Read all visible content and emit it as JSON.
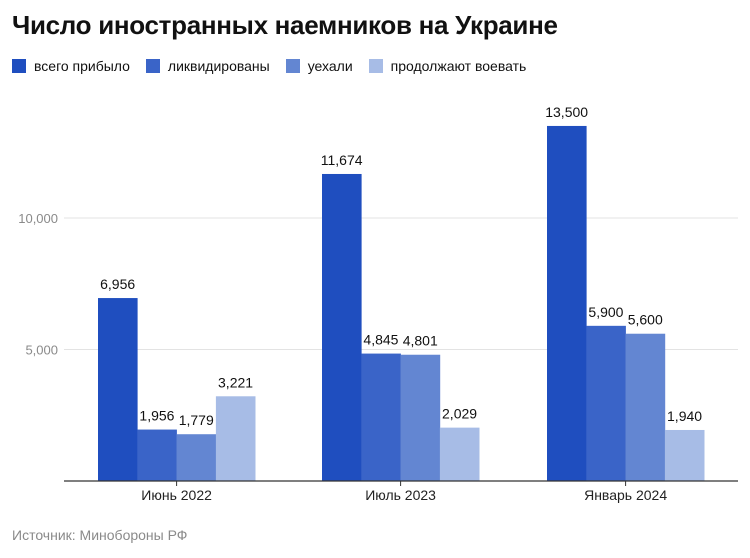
{
  "colors": [
    "#1f4ebf",
    "#3a64c8",
    "#6386d2",
    "#a7bce6"
  ],
  "chart_data": {
    "type": "bar",
    "title": "Число иностранных наемников на Украине",
    "source": "Источник: Минобороны РФ",
    "categories": [
      "Июнь 2022",
      "Июль 2023",
      "Январь 2024"
    ],
    "series": [
      {
        "name": "всего прибыло",
        "values": [
          6956,
          11674,
          13500
        ]
      },
      {
        "name": "ликвидированы",
        "values": [
          1956,
          4845,
          5900
        ]
      },
      {
        "name": "уехали",
        "values": [
          1779,
          4801,
          5600
        ]
      },
      {
        "name": "продолжают воевать",
        "values": [
          3221,
          2029,
          1940
        ]
      }
    ],
    "data_labels": [
      [
        "6,956",
        "1,956",
        "1,779",
        "3,221"
      ],
      [
        "11,674",
        "4,845",
        "4,801",
        "2,029"
      ],
      [
        "13,500",
        "5,900",
        "5,600",
        "1,940"
      ]
    ],
    "yticks": [
      {
        "value": 5000,
        "label": "5,000"
      },
      {
        "value": 10000,
        "label": "10,000"
      }
    ],
    "ylim": [
      0,
      14000
    ],
    "grid": true,
    "legend_position": "top-left"
  }
}
